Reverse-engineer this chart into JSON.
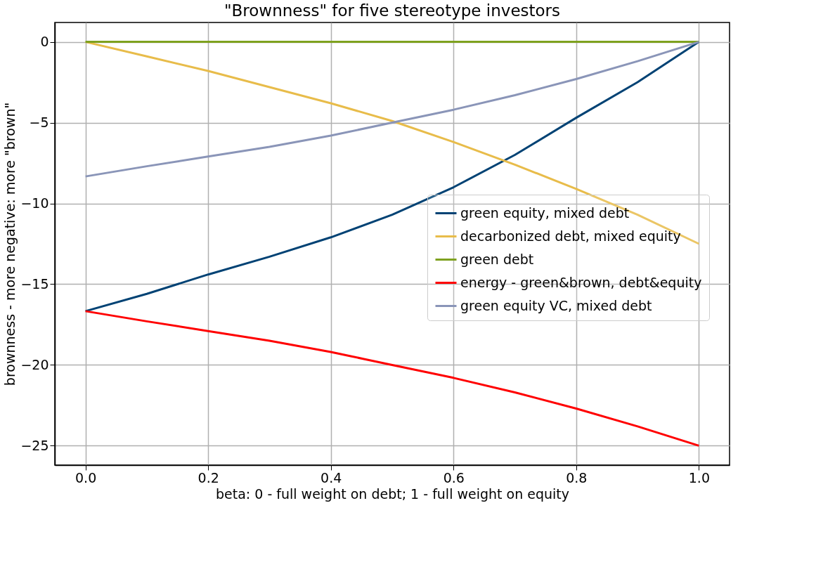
{
  "chart_data": {
    "type": "line",
    "title": "\"Brownness\" for five stereotype investors",
    "xlabel": "beta: 0 - full weight on debt; 1 - full weight on equity",
    "ylabel": "brownness - more negative: more \"brown\"",
    "x": [
      0,
      0.1,
      0.2,
      0.3,
      0.4,
      0.5,
      0.6,
      0.7,
      0.8,
      0.9,
      1.0
    ],
    "series": [
      {
        "name": "green equity, mixed debt",
        "color": "#004274",
        "values": [
          -16.67,
          -15.6,
          -14.4,
          -13.3,
          -12.1,
          -10.7,
          -9.0,
          -7.0,
          -4.7,
          -2.5,
          0
        ]
      },
      {
        "name": "decarbonized debt, mixed equity",
        "color": "#e8bc4a",
        "values": [
          0,
          -0.9,
          -1.8,
          -2.8,
          -3.8,
          -4.9,
          -6.2,
          -7.6,
          -9.1,
          -10.7,
          -12.5
        ]
      },
      {
        "name": "green debt",
        "color": "#7ea11f",
        "values": [
          0,
          0,
          0,
          0,
          0,
          0,
          0,
          0,
          0,
          0,
          0
        ]
      },
      {
        "name": "energy - green&brown, debt&equity",
        "color": "#ff0000",
        "values": [
          -16.67,
          -17.3,
          -17.9,
          -18.5,
          -19.2,
          -20.0,
          -20.8,
          -21.7,
          -22.7,
          -23.8,
          -25
        ]
      },
      {
        "name": "green equity VC, mixed debt",
        "color": "#8a95b8",
        "values": [
          -8.33,
          -7.7,
          -7.1,
          -6.5,
          -5.8,
          -5.0,
          -4.2,
          -3.3,
          -2.3,
          -1.2,
          0
        ]
      }
    ],
    "xlim": [
      -0.05,
      1.05
    ],
    "ylim": [
      -26.2,
      1.2
    ],
    "xticks": [
      {
        "value": 0,
        "label": "0.0"
      },
      0.2,
      0.4,
      0.6,
      0.8,
      {
        "value": 1,
        "label": "1.0"
      }
    ],
    "yticks": [
      0,
      -5,
      -10,
      -15,
      -20,
      -25
    ],
    "grid": true,
    "legend": "right",
    "marker": "none",
    "line_style": "solid"
  }
}
